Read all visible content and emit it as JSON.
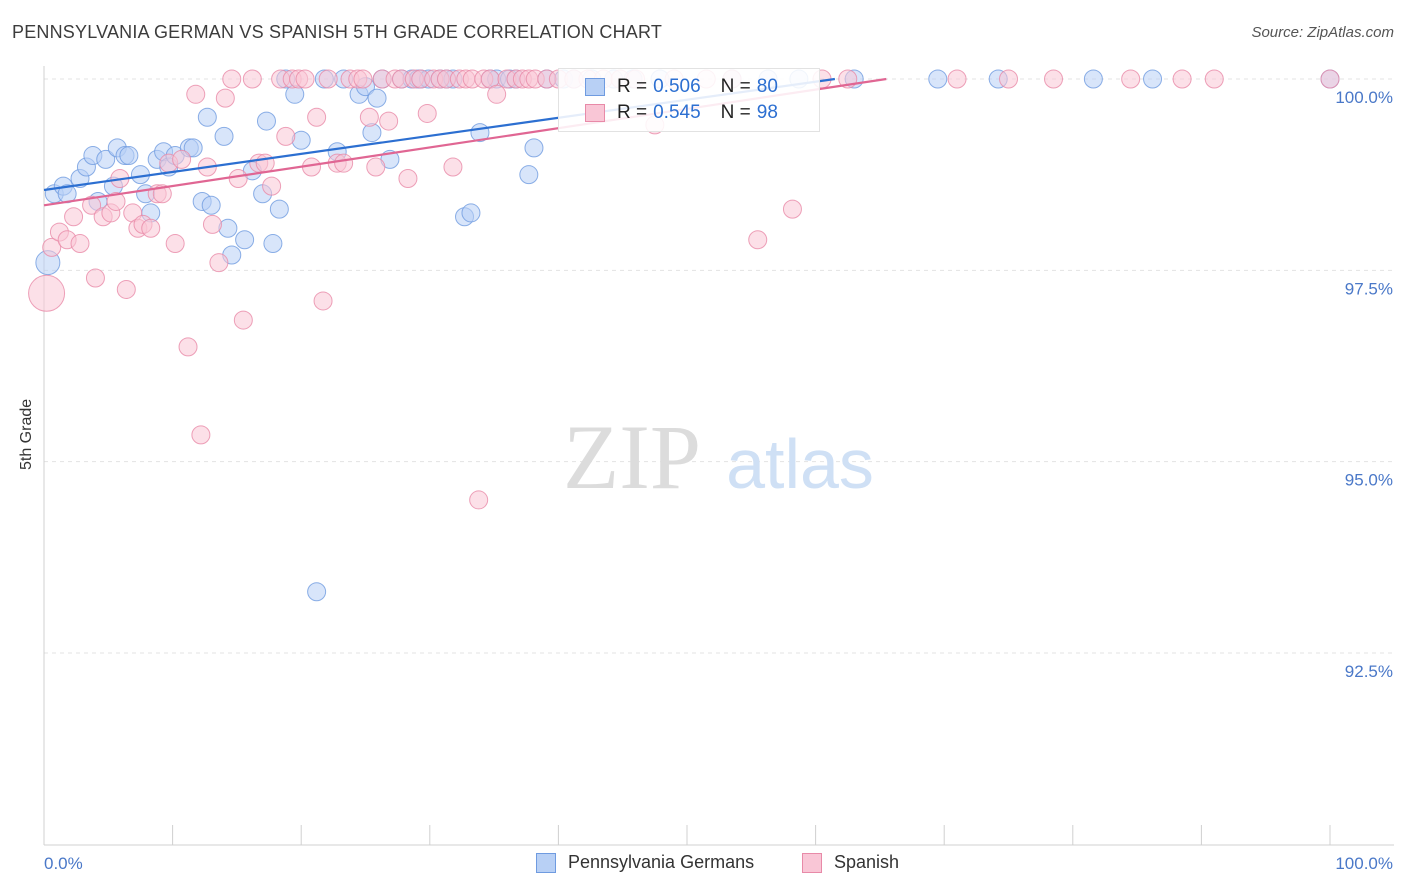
{
  "header": {
    "title": "PENNSYLVANIA GERMAN VS SPANISH 5TH GRADE CORRELATION CHART",
    "source": "Source: ZipAtlas.com"
  },
  "watermark": {
    "zip": "ZIP",
    "atlas": "atlas"
  },
  "legend": {
    "r_label": "R =",
    "n_label": "N =",
    "entries": [
      {
        "r": "0.506",
        "n": "80"
      },
      {
        "r": "0.545",
        "n": "98"
      }
    ]
  },
  "chart_data": {
    "type": "scatter",
    "title": "PENNSYLVANIA GERMAN VS SPANISH 5TH GRADE CORRELATION CHART",
    "xlabel": "",
    "ylabel": "5th Grade",
    "xlim": [
      0,
      100
    ],
    "ylim": [
      90.5,
      100.4
    ],
    "x_tick_labels": [
      "0.0%",
      "100.0%"
    ],
    "y_ticks": [
      {
        "value": 100.0,
        "label": "100.0%"
      },
      {
        "value": 97.5,
        "label": "97.5%"
      },
      {
        "value": 95.0,
        "label": "95.0%"
      },
      {
        "value": 92.5,
        "label": "92.5%"
      }
    ],
    "colors": {
      "pennsylvania_fill": "#b8d0f5",
      "pennsylvania_edge": "#6f9be0",
      "pennsylvania_line": "#2c6fd1",
      "spanish_fill": "#f9c6d6",
      "spanish_edge": "#e88aa8",
      "spanish_line": "#e06693",
      "axis_text": "#4a78c8"
    },
    "series": [
      {
        "name": "Pennsylvania Germans",
        "r": 0.506,
        "n": 80,
        "trend": {
          "x": [
            0,
            61.5
          ],
          "y": [
            98.55,
            100.0
          ]
        },
        "points": [
          [
            0.3,
            97.6
          ],
          [
            0.8,
            98.5
          ],
          [
            1.5,
            98.6
          ],
          [
            1.8,
            98.5
          ],
          [
            2.8,
            98.7
          ],
          [
            3.3,
            98.85
          ],
          [
            3.8,
            99.0
          ],
          [
            4.2,
            98.4
          ],
          [
            4.8,
            98.95
          ],
          [
            5.4,
            98.6
          ],
          [
            5.7,
            99.1
          ],
          [
            6.3,
            99.0
          ],
          [
            6.6,
            99.0
          ],
          [
            7.5,
            98.75
          ],
          [
            7.9,
            98.5
          ],
          [
            8.3,
            98.25
          ],
          [
            8.8,
            98.95
          ],
          [
            9.3,
            99.05
          ],
          [
            9.7,
            98.85
          ],
          [
            10.2,
            99.0
          ],
          [
            11.3,
            99.1
          ],
          [
            11.6,
            99.1
          ],
          [
            12.3,
            98.4
          ],
          [
            12.7,
            99.5
          ],
          [
            13.0,
            98.35
          ],
          [
            14.0,
            99.25
          ],
          [
            14.3,
            98.05
          ],
          [
            14.6,
            97.7
          ],
          [
            15.6,
            97.9
          ],
          [
            16.2,
            98.8
          ],
          [
            17.0,
            98.5
          ],
          [
            17.3,
            99.45
          ],
          [
            17.8,
            97.85
          ],
          [
            18.3,
            98.3
          ],
          [
            18.8,
            100.0
          ],
          [
            19.5,
            99.8
          ],
          [
            20.0,
            99.2
          ],
          [
            21.2,
            93.3
          ],
          [
            21.8,
            100.0
          ],
          [
            22.8,
            99.05
          ],
          [
            23.3,
            100.0
          ],
          [
            24.5,
            99.8
          ],
          [
            25.0,
            99.9
          ],
          [
            25.5,
            99.3
          ],
          [
            25.9,
            99.75
          ],
          [
            26.3,
            100.0
          ],
          [
            26.9,
            98.95
          ],
          [
            27.8,
            100.0
          ],
          [
            28.6,
            100.0
          ],
          [
            29.1,
            100.0
          ],
          [
            29.3,
            100.0
          ],
          [
            29.9,
            100.0
          ],
          [
            30.8,
            100.0
          ],
          [
            31.3,
            100.0
          ],
          [
            31.8,
            100.0
          ],
          [
            32.7,
            98.2
          ],
          [
            33.2,
            98.25
          ],
          [
            33.9,
            99.3
          ],
          [
            34.7,
            100.0
          ],
          [
            35.2,
            100.0
          ],
          [
            36.2,
            100.0
          ],
          [
            36.7,
            100.0
          ],
          [
            37.7,
            98.75
          ],
          [
            38.1,
            99.1
          ],
          [
            39.1,
            100.0
          ],
          [
            40.4,
            100.0
          ],
          [
            41.2,
            100.0
          ],
          [
            42.6,
            100.0
          ],
          [
            44.3,
            100.0
          ],
          [
            45.8,
            100.0
          ],
          [
            47.9,
            100.0
          ],
          [
            53.5,
            100.0
          ],
          [
            56.3,
            100.0
          ],
          [
            58.7,
            100.0
          ],
          [
            63.0,
            100.0
          ],
          [
            69.5,
            100.0
          ],
          [
            74.2,
            100.0
          ],
          [
            81.6,
            100.0
          ],
          [
            86.2,
            100.0
          ],
          [
            100.0,
            100.0
          ]
        ],
        "sizes": {
          "0": 24
        }
      },
      {
        "name": "Spanish",
        "r": 0.545,
        "n": 98,
        "trend": {
          "x": [
            0,
            65.5
          ],
          "y": [
            98.35,
            100.0
          ]
        },
        "points": [
          [
            0.2,
            97.2
          ],
          [
            0.6,
            97.8
          ],
          [
            1.2,
            98.0
          ],
          [
            1.8,
            97.9
          ],
          [
            2.3,
            98.2
          ],
          [
            2.8,
            97.85
          ],
          [
            3.7,
            98.35
          ],
          [
            4.0,
            97.4
          ],
          [
            4.6,
            98.2
          ],
          [
            5.2,
            98.25
          ],
          [
            5.6,
            98.4
          ],
          [
            5.9,
            98.7
          ],
          [
            6.4,
            97.25
          ],
          [
            6.9,
            98.25
          ],
          [
            7.3,
            98.05
          ],
          [
            7.7,
            98.1
          ],
          [
            8.3,
            98.05
          ],
          [
            8.8,
            98.5
          ],
          [
            9.2,
            98.5
          ],
          [
            9.7,
            98.9
          ],
          [
            10.2,
            97.85
          ],
          [
            10.7,
            98.95
          ],
          [
            11.2,
            96.5
          ],
          [
            11.8,
            99.8
          ],
          [
            12.2,
            95.35
          ],
          [
            12.7,
            98.85
          ],
          [
            13.1,
            98.1
          ],
          [
            13.6,
            97.6
          ],
          [
            14.1,
            99.75
          ],
          [
            14.6,
            100.0
          ],
          [
            15.1,
            98.7
          ],
          [
            15.5,
            96.85
          ],
          [
            16.2,
            100.0
          ],
          [
            16.7,
            98.9
          ],
          [
            17.2,
            98.9
          ],
          [
            17.7,
            98.6
          ],
          [
            18.4,
            100.0
          ],
          [
            18.8,
            99.25
          ],
          [
            19.3,
            100.0
          ],
          [
            19.8,
            100.0
          ],
          [
            20.3,
            100.0
          ],
          [
            20.8,
            98.85
          ],
          [
            21.2,
            99.5
          ],
          [
            21.7,
            97.1
          ],
          [
            22.1,
            100.0
          ],
          [
            22.8,
            98.9
          ],
          [
            23.3,
            98.9
          ],
          [
            23.8,
            100.0
          ],
          [
            24.4,
            100.0
          ],
          [
            24.8,
            100.0
          ],
          [
            25.3,
            99.5
          ],
          [
            25.8,
            98.85
          ],
          [
            26.3,
            100.0
          ],
          [
            26.8,
            99.45
          ],
          [
            27.3,
            100.0
          ],
          [
            27.8,
            100.0
          ],
          [
            28.3,
            98.7
          ],
          [
            28.8,
            100.0
          ],
          [
            29.3,
            100.0
          ],
          [
            29.8,
            99.55
          ],
          [
            30.3,
            100.0
          ],
          [
            30.8,
            100.0
          ],
          [
            31.3,
            100.0
          ],
          [
            31.8,
            98.85
          ],
          [
            32.3,
            100.0
          ],
          [
            32.8,
            100.0
          ],
          [
            33.3,
            100.0
          ],
          [
            33.8,
            94.5
          ],
          [
            34.2,
            100.0
          ],
          [
            34.7,
            100.0
          ],
          [
            35.2,
            99.8
          ],
          [
            36.0,
            100.0
          ],
          [
            36.7,
            100.0
          ],
          [
            37.2,
            100.0
          ],
          [
            37.7,
            100.0
          ],
          [
            38.2,
            100.0
          ],
          [
            39.1,
            100.0
          ],
          [
            40.0,
            100.0
          ],
          [
            41.2,
            100.0
          ],
          [
            42.3,
            100.0
          ],
          [
            43.5,
            100.0
          ],
          [
            44.8,
            100.0
          ],
          [
            46.0,
            100.0
          ],
          [
            47.5,
            99.4
          ],
          [
            49.0,
            100.0
          ],
          [
            51.5,
            100.0
          ],
          [
            53.5,
            100.0
          ],
          [
            55.5,
            97.9
          ],
          [
            58.2,
            98.3
          ],
          [
            60.5,
            100.0
          ],
          [
            62.5,
            100.0
          ],
          [
            71.0,
            100.0
          ],
          [
            75.0,
            100.0
          ],
          [
            78.5,
            100.0
          ],
          [
            84.5,
            100.0
          ],
          [
            88.5,
            100.0
          ],
          [
            91.0,
            100.0
          ],
          [
            100.0,
            100.0
          ]
        ],
        "sizes": {
          "0": 36
        }
      }
    ]
  },
  "bottom_legend": [
    {
      "label": "Pennsylvania Germans"
    },
    {
      "label": "Spanish"
    }
  ]
}
